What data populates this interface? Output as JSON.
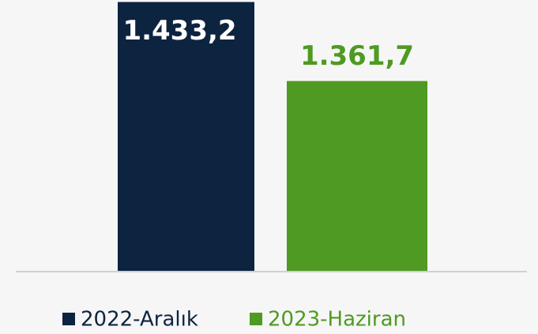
{
  "chart_data": {
    "type": "bar",
    "categories": [
      null
    ],
    "series": [
      {
        "name": "2022-Aralık",
        "color": "#0d2440",
        "values": [
          1433.2
        ],
        "value_labels": [
          "1.433,2"
        ]
      },
      {
        "name": "2023-Haziran",
        "color": "#4e9a22",
        "values": [
          1361.7
        ],
        "value_labels": [
          "1.361,7"
        ]
      }
    ],
    "ylim": [
      1190,
      1435
    ],
    "legend": "bottom"
  }
}
